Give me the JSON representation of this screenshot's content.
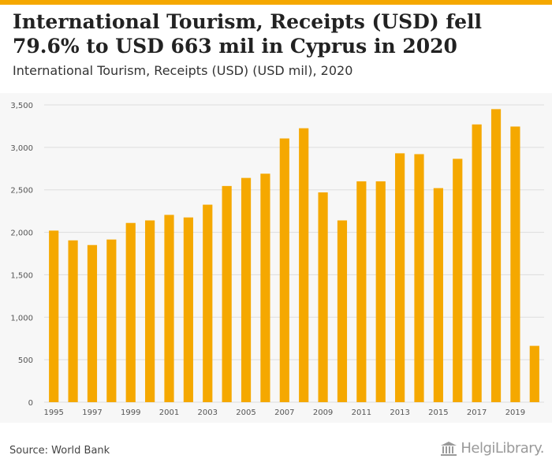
{
  "header": {
    "title": "International Tourism, Receipts (USD) fell 79.6% to USD 663 mil in Cyprus in 2020",
    "subtitle": "International Tourism, Receipts (USD) (USD mil), 2020"
  },
  "footer": {
    "source": "Source: World Bank",
    "logo_text": "HelgiLibrary."
  },
  "colors": {
    "bar": "#f5a800",
    "grid": "#dddddd",
    "axis_text": "#555555"
  },
  "chart_data": {
    "type": "bar",
    "title": "International Tourism, Receipts (USD) (USD mil), 2020",
    "xlabel": "",
    "ylabel": "",
    "categories": [
      "1995",
      "1996",
      "1997",
      "1998",
      "1999",
      "2000",
      "2001",
      "2002",
      "2003",
      "2004",
      "2005",
      "2006",
      "2007",
      "2008",
      "2009",
      "2010",
      "2011",
      "2012",
      "2013",
      "2014",
      "2015",
      "2016",
      "2017",
      "2018",
      "2019",
      "2020"
    ],
    "x_tick_labels": [
      "1995",
      "1997",
      "1999",
      "2001",
      "2003",
      "2005",
      "2007",
      "2009",
      "2011",
      "2013",
      "2015",
      "2017",
      "2019"
    ],
    "values": [
      2020,
      1905,
      1850,
      1915,
      2110,
      2140,
      2205,
      2175,
      2325,
      2545,
      2640,
      2690,
      3105,
      3225,
      2470,
      2140,
      2600,
      2600,
      2930,
      2920,
      2520,
      2865,
      3270,
      3450,
      3245,
      663
    ],
    "ylim": [
      0,
      3500
    ],
    "y_ticks": [
      0,
      500,
      1000,
      1500,
      2000,
      2500,
      3000,
      3500
    ],
    "y_tick_labels": [
      "0",
      "500",
      "1,000",
      "1,500",
      "2,000",
      "2,500",
      "3,000",
      "3,500"
    ],
    "grid": true,
    "legend": "none"
  }
}
